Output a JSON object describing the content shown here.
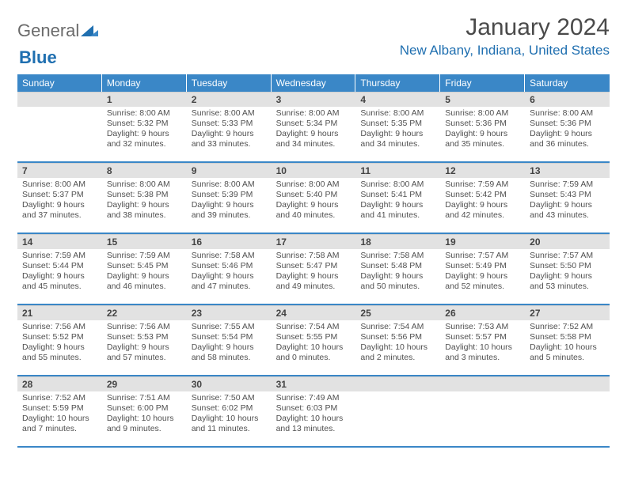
{
  "brand": {
    "part1": "General",
    "part2": "Blue"
  },
  "title": "January 2024",
  "location": "New Albany, Indiana, United States",
  "colors": {
    "header_bg": "#3a87c7",
    "header_text": "#ffffff",
    "daynum_bg": "#e2e2e2",
    "week_border": "#3a87c7",
    "brand_blue": "#1f6fb0",
    "text": "#4a4a4a"
  },
  "weekdays": [
    "Sunday",
    "Monday",
    "Tuesday",
    "Wednesday",
    "Thursday",
    "Friday",
    "Saturday"
  ],
  "weeks": [
    [
      {
        "num": "",
        "sunrise": "",
        "sunset": "",
        "daylight1": "",
        "daylight2": ""
      },
      {
        "num": "1",
        "sunrise": "Sunrise: 8:00 AM",
        "sunset": "Sunset: 5:32 PM",
        "daylight1": "Daylight: 9 hours",
        "daylight2": "and 32 minutes."
      },
      {
        "num": "2",
        "sunrise": "Sunrise: 8:00 AM",
        "sunset": "Sunset: 5:33 PM",
        "daylight1": "Daylight: 9 hours",
        "daylight2": "and 33 minutes."
      },
      {
        "num": "3",
        "sunrise": "Sunrise: 8:00 AM",
        "sunset": "Sunset: 5:34 PM",
        "daylight1": "Daylight: 9 hours",
        "daylight2": "and 34 minutes."
      },
      {
        "num": "4",
        "sunrise": "Sunrise: 8:00 AM",
        "sunset": "Sunset: 5:35 PM",
        "daylight1": "Daylight: 9 hours",
        "daylight2": "and 34 minutes."
      },
      {
        "num": "5",
        "sunrise": "Sunrise: 8:00 AM",
        "sunset": "Sunset: 5:36 PM",
        "daylight1": "Daylight: 9 hours",
        "daylight2": "and 35 minutes."
      },
      {
        "num": "6",
        "sunrise": "Sunrise: 8:00 AM",
        "sunset": "Sunset: 5:36 PM",
        "daylight1": "Daylight: 9 hours",
        "daylight2": "and 36 minutes."
      }
    ],
    [
      {
        "num": "7",
        "sunrise": "Sunrise: 8:00 AM",
        "sunset": "Sunset: 5:37 PM",
        "daylight1": "Daylight: 9 hours",
        "daylight2": "and 37 minutes."
      },
      {
        "num": "8",
        "sunrise": "Sunrise: 8:00 AM",
        "sunset": "Sunset: 5:38 PM",
        "daylight1": "Daylight: 9 hours",
        "daylight2": "and 38 minutes."
      },
      {
        "num": "9",
        "sunrise": "Sunrise: 8:00 AM",
        "sunset": "Sunset: 5:39 PM",
        "daylight1": "Daylight: 9 hours",
        "daylight2": "and 39 minutes."
      },
      {
        "num": "10",
        "sunrise": "Sunrise: 8:00 AM",
        "sunset": "Sunset: 5:40 PM",
        "daylight1": "Daylight: 9 hours",
        "daylight2": "and 40 minutes."
      },
      {
        "num": "11",
        "sunrise": "Sunrise: 8:00 AM",
        "sunset": "Sunset: 5:41 PM",
        "daylight1": "Daylight: 9 hours",
        "daylight2": "and 41 minutes."
      },
      {
        "num": "12",
        "sunrise": "Sunrise: 7:59 AM",
        "sunset": "Sunset: 5:42 PM",
        "daylight1": "Daylight: 9 hours",
        "daylight2": "and 42 minutes."
      },
      {
        "num": "13",
        "sunrise": "Sunrise: 7:59 AM",
        "sunset": "Sunset: 5:43 PM",
        "daylight1": "Daylight: 9 hours",
        "daylight2": "and 43 minutes."
      }
    ],
    [
      {
        "num": "14",
        "sunrise": "Sunrise: 7:59 AM",
        "sunset": "Sunset: 5:44 PM",
        "daylight1": "Daylight: 9 hours",
        "daylight2": "and 45 minutes."
      },
      {
        "num": "15",
        "sunrise": "Sunrise: 7:59 AM",
        "sunset": "Sunset: 5:45 PM",
        "daylight1": "Daylight: 9 hours",
        "daylight2": "and 46 minutes."
      },
      {
        "num": "16",
        "sunrise": "Sunrise: 7:58 AM",
        "sunset": "Sunset: 5:46 PM",
        "daylight1": "Daylight: 9 hours",
        "daylight2": "and 47 minutes."
      },
      {
        "num": "17",
        "sunrise": "Sunrise: 7:58 AM",
        "sunset": "Sunset: 5:47 PM",
        "daylight1": "Daylight: 9 hours",
        "daylight2": "and 49 minutes."
      },
      {
        "num": "18",
        "sunrise": "Sunrise: 7:58 AM",
        "sunset": "Sunset: 5:48 PM",
        "daylight1": "Daylight: 9 hours",
        "daylight2": "and 50 minutes."
      },
      {
        "num": "19",
        "sunrise": "Sunrise: 7:57 AM",
        "sunset": "Sunset: 5:49 PM",
        "daylight1": "Daylight: 9 hours",
        "daylight2": "and 52 minutes."
      },
      {
        "num": "20",
        "sunrise": "Sunrise: 7:57 AM",
        "sunset": "Sunset: 5:50 PM",
        "daylight1": "Daylight: 9 hours",
        "daylight2": "and 53 minutes."
      }
    ],
    [
      {
        "num": "21",
        "sunrise": "Sunrise: 7:56 AM",
        "sunset": "Sunset: 5:52 PM",
        "daylight1": "Daylight: 9 hours",
        "daylight2": "and 55 minutes."
      },
      {
        "num": "22",
        "sunrise": "Sunrise: 7:56 AM",
        "sunset": "Sunset: 5:53 PM",
        "daylight1": "Daylight: 9 hours",
        "daylight2": "and 57 minutes."
      },
      {
        "num": "23",
        "sunrise": "Sunrise: 7:55 AM",
        "sunset": "Sunset: 5:54 PM",
        "daylight1": "Daylight: 9 hours",
        "daylight2": "and 58 minutes."
      },
      {
        "num": "24",
        "sunrise": "Sunrise: 7:54 AM",
        "sunset": "Sunset: 5:55 PM",
        "daylight1": "Daylight: 10 hours",
        "daylight2": "and 0 minutes."
      },
      {
        "num": "25",
        "sunrise": "Sunrise: 7:54 AM",
        "sunset": "Sunset: 5:56 PM",
        "daylight1": "Daylight: 10 hours",
        "daylight2": "and 2 minutes."
      },
      {
        "num": "26",
        "sunrise": "Sunrise: 7:53 AM",
        "sunset": "Sunset: 5:57 PM",
        "daylight1": "Daylight: 10 hours",
        "daylight2": "and 3 minutes."
      },
      {
        "num": "27",
        "sunrise": "Sunrise: 7:52 AM",
        "sunset": "Sunset: 5:58 PM",
        "daylight1": "Daylight: 10 hours",
        "daylight2": "and 5 minutes."
      }
    ],
    [
      {
        "num": "28",
        "sunrise": "Sunrise: 7:52 AM",
        "sunset": "Sunset: 5:59 PM",
        "daylight1": "Daylight: 10 hours",
        "daylight2": "and 7 minutes."
      },
      {
        "num": "29",
        "sunrise": "Sunrise: 7:51 AM",
        "sunset": "Sunset: 6:00 PM",
        "daylight1": "Daylight: 10 hours",
        "daylight2": "and 9 minutes."
      },
      {
        "num": "30",
        "sunrise": "Sunrise: 7:50 AM",
        "sunset": "Sunset: 6:02 PM",
        "daylight1": "Daylight: 10 hours",
        "daylight2": "and 11 minutes."
      },
      {
        "num": "31",
        "sunrise": "Sunrise: 7:49 AM",
        "sunset": "Sunset: 6:03 PM",
        "daylight1": "Daylight: 10 hours",
        "daylight2": "and 13 minutes."
      },
      {
        "num": "",
        "sunrise": "",
        "sunset": "",
        "daylight1": "",
        "daylight2": ""
      },
      {
        "num": "",
        "sunrise": "",
        "sunset": "",
        "daylight1": "",
        "daylight2": ""
      },
      {
        "num": "",
        "sunrise": "",
        "sunset": "",
        "daylight1": "",
        "daylight2": ""
      }
    ]
  ]
}
